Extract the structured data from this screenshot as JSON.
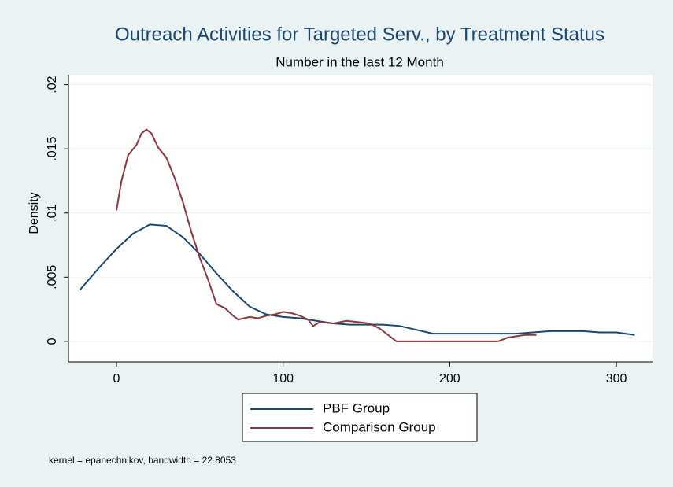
{
  "chart_data": {
    "type": "line",
    "title": "Outreach Activities for Targeted Serv., by Treatment Status",
    "subtitle": "Number in the last 12 Month",
    "y_label": "Density",
    "note": "kernel = epanechnikov, bandwidth = 22.8053",
    "xlim": [
      -28.8,
      321.7
    ],
    "xticks": [
      0,
      100,
      200,
      300
    ],
    "ylim": [
      -0.0016,
      0.02077
    ],
    "yticks": [
      0,
      {
        "value": 0.005,
        "label": ".005"
      },
      {
        "value": 0.01,
        "label": ".01"
      },
      {
        "value": 0.015,
        "label": ".015"
      },
      {
        "value": 0.02,
        "label": ".02"
      }
    ],
    "grid": true,
    "legend": "bottom",
    "series": [
      {
        "name": "PBF Group",
        "color": "#1a476f",
        "x": [
          -22,
          -10,
          0,
          10,
          20,
          30,
          40,
          50,
          60,
          70,
          80,
          90,
          100,
          110,
          120,
          130,
          140,
          150,
          160,
          170,
          180,
          190,
          200,
          210,
          220,
          230,
          240,
          250,
          260,
          270,
          280,
          290,
          300,
          311
        ],
        "values": [
          0.004,
          0.0058,
          0.0072,
          0.0084,
          0.0091,
          0.009,
          0.0081,
          0.0068,
          0.0053,
          0.0039,
          0.0027,
          0.0021,
          0.0019,
          0.0018,
          0.0016,
          0.0014,
          0.0013,
          0.0013,
          0.0013,
          0.0012,
          0.0009,
          0.0006,
          0.0006,
          0.0006,
          0.0006,
          0.0006,
          0.0006,
          0.0007,
          0.0008,
          0.0008,
          0.0008,
          0.0007,
          0.0007,
          0.0005
        ]
      },
      {
        "name": "Comparison Group",
        "color": "#90353b",
        "x": [
          0,
          3,
          7,
          12,
          15,
          18,
          21,
          25,
          30,
          35,
          40,
          45,
          50,
          55,
          60,
          65,
          70,
          73,
          80,
          85,
          90,
          95,
          100,
          105,
          110,
          115,
          118,
          122,
          130,
          138,
          145,
          152,
          158,
          163,
          168,
          180,
          200,
          220,
          229,
          235,
          245,
          252
        ],
        "values": [
          0.0102,
          0.0125,
          0.0145,
          0.0153,
          0.0162,
          0.0165,
          0.0162,
          0.0151,
          0.0143,
          0.0127,
          0.0108,
          0.0085,
          0.0065,
          0.0048,
          0.0029,
          0.0026,
          0.002,
          0.0017,
          0.0019,
          0.0018,
          0.002,
          0.0021,
          0.0023,
          0.0022,
          0.002,
          0.0017,
          0.0012,
          0.0015,
          0.0014,
          0.0016,
          0.0015,
          0.0014,
          0.001,
          0.0005,
          0,
          0,
          0,
          0,
          0,
          0.0003,
          0.0005,
          0.0005
        ]
      }
    ]
  }
}
